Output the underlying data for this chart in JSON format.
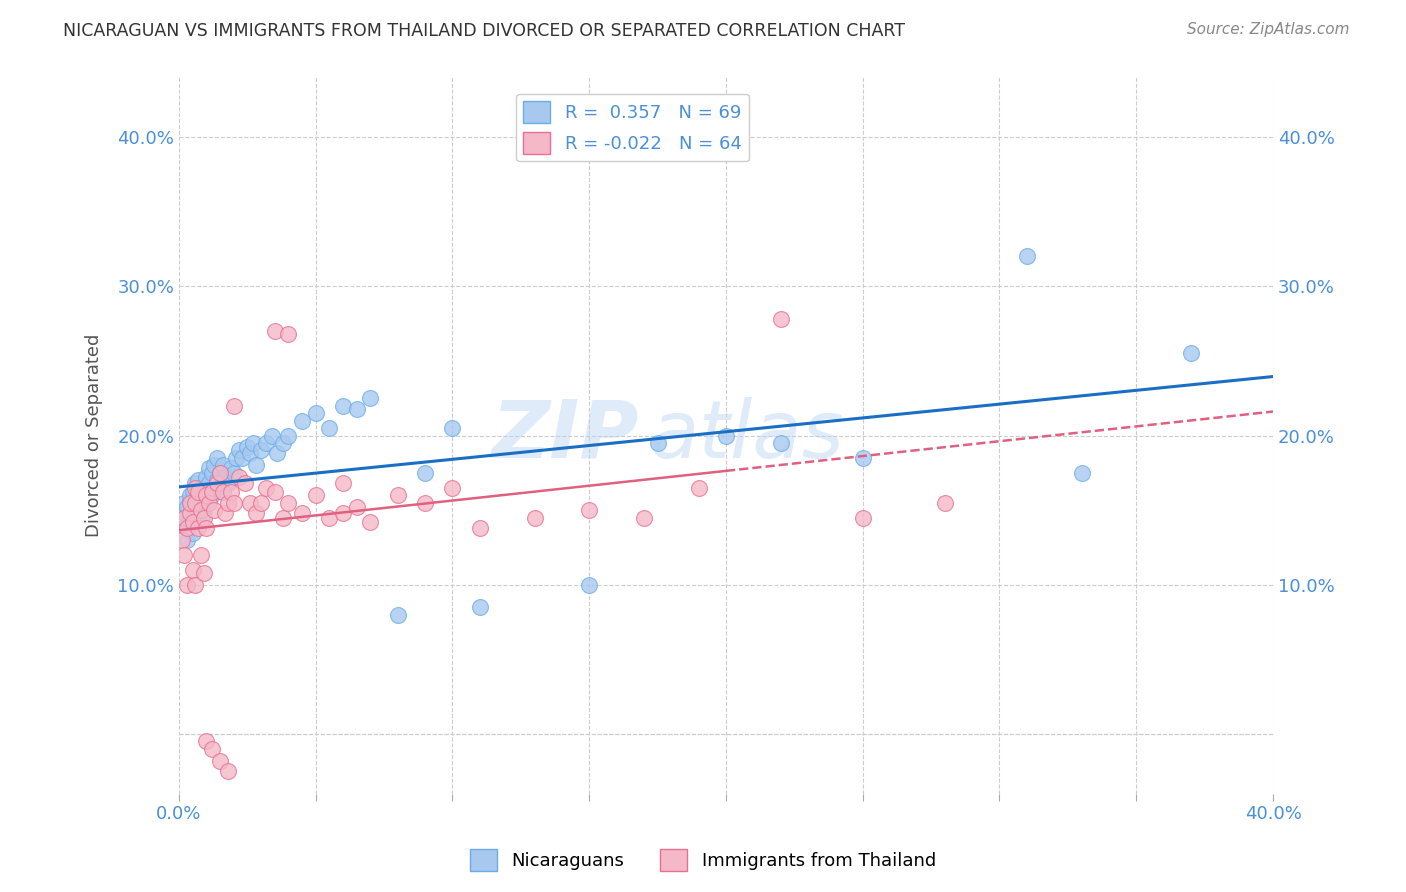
{
  "title": "NICARAGUAN VS IMMIGRANTS FROM THAILAND DIVORCED OR SEPARATED CORRELATION CHART",
  "source": "Source: ZipAtlas.com",
  "ylabel": "Divorced or Separated",
  "xlabel_nicaraguans": "Nicaraguans",
  "xlabel_thailand": "Immigrants from Thailand",
  "xlim": [
    0.0,
    0.4
  ],
  "ylim": [
    -0.04,
    0.44
  ],
  "xticks": [
    0.0,
    0.05,
    0.1,
    0.15,
    0.2,
    0.25,
    0.3,
    0.35,
    0.4
  ],
  "yticks": [
    0.0,
    0.1,
    0.2,
    0.3,
    0.4
  ],
  "blue_color": "#a8c8f0",
  "blue_edge": "#6aaee8",
  "blue_line": "#1a6fc4",
  "pink_color": "#f5b8c8",
  "pink_edge": "#e87090",
  "pink_line": "#e06080",
  "R_blue": 0.357,
  "N_blue": 69,
  "R_pink": -0.022,
  "N_pink": 64,
  "blue_scatter_x": [
    0.001,
    0.002,
    0.002,
    0.003,
    0.003,
    0.004,
    0.004,
    0.004,
    0.005,
    0.005,
    0.005,
    0.006,
    0.006,
    0.006,
    0.007,
    0.007,
    0.007,
    0.008,
    0.008,
    0.009,
    0.009,
    0.01,
    0.01,
    0.011,
    0.011,
    0.012,
    0.012,
    0.013,
    0.013,
    0.014,
    0.014,
    0.015,
    0.015,
    0.016,
    0.017,
    0.018,
    0.019,
    0.02,
    0.021,
    0.022,
    0.023,
    0.025,
    0.026,
    0.027,
    0.028,
    0.03,
    0.032,
    0.034,
    0.036,
    0.038,
    0.04,
    0.045,
    0.05,
    0.055,
    0.06,
    0.065,
    0.07,
    0.08,
    0.09,
    0.1,
    0.11,
    0.15,
    0.175,
    0.2,
    0.22,
    0.25,
    0.31,
    0.33,
    0.37
  ],
  "blue_scatter_y": [
    0.14,
    0.148,
    0.155,
    0.13,
    0.152,
    0.143,
    0.156,
    0.16,
    0.135,
    0.148,
    0.162,
    0.15,
    0.155,
    0.168,
    0.145,
    0.158,
    0.17,
    0.153,
    0.165,
    0.148,
    0.16,
    0.155,
    0.172,
    0.168,
    0.178,
    0.16,
    0.175,
    0.165,
    0.18,
    0.17,
    0.185,
    0.163,
    0.175,
    0.18,
    0.172,
    0.168,
    0.178,
    0.175,
    0.185,
    0.19,
    0.185,
    0.192,
    0.188,
    0.195,
    0.18,
    0.19,
    0.195,
    0.2,
    0.188,
    0.195,
    0.2,
    0.21,
    0.215,
    0.205,
    0.22,
    0.218,
    0.225,
    0.08,
    0.175,
    0.205,
    0.085,
    0.1,
    0.195,
    0.2,
    0.195,
    0.185,
    0.32,
    0.175,
    0.255
  ],
  "pink_scatter_x": [
    0.001,
    0.002,
    0.002,
    0.003,
    0.003,
    0.004,
    0.004,
    0.005,
    0.005,
    0.006,
    0.006,
    0.006,
    0.007,
    0.007,
    0.008,
    0.008,
    0.009,
    0.009,
    0.01,
    0.01,
    0.011,
    0.012,
    0.013,
    0.014,
    0.015,
    0.016,
    0.017,
    0.018,
    0.019,
    0.02,
    0.022,
    0.024,
    0.026,
    0.028,
    0.03,
    0.032,
    0.035,
    0.038,
    0.04,
    0.045,
    0.05,
    0.055,
    0.06,
    0.065,
    0.07,
    0.08,
    0.09,
    0.1,
    0.11,
    0.13,
    0.15,
    0.17,
    0.19,
    0.22,
    0.25,
    0.28,
    0.02,
    0.035,
    0.04,
    0.06,
    0.01,
    0.012,
    0.015,
    0.018
  ],
  "pink_scatter_y": [
    0.13,
    0.12,
    0.145,
    0.1,
    0.138,
    0.148,
    0.155,
    0.11,
    0.142,
    0.1,
    0.155,
    0.165,
    0.138,
    0.162,
    0.12,
    0.15,
    0.108,
    0.145,
    0.138,
    0.16,
    0.155,
    0.162,
    0.15,
    0.168,
    0.175,
    0.162,
    0.148,
    0.155,
    0.162,
    0.155,
    0.172,
    0.168,
    0.155,
    0.148,
    0.155,
    0.165,
    0.162,
    0.145,
    0.155,
    0.148,
    0.16,
    0.145,
    0.148,
    0.152,
    0.142,
    0.16,
    0.155,
    0.165,
    0.138,
    0.145,
    0.15,
    0.145,
    0.165,
    0.278,
    0.145,
    0.155,
    0.22,
    0.27,
    0.268,
    0.168,
    -0.005,
    -0.01,
    -0.018,
    -0.025
  ],
  "watermark": "ZIPatlas",
  "title_color": "#333333",
  "source_color": "#888888",
  "grid_color": "#cccccc",
  "axis_label_color": "#555555",
  "tick_label_color": "#4a90d9"
}
